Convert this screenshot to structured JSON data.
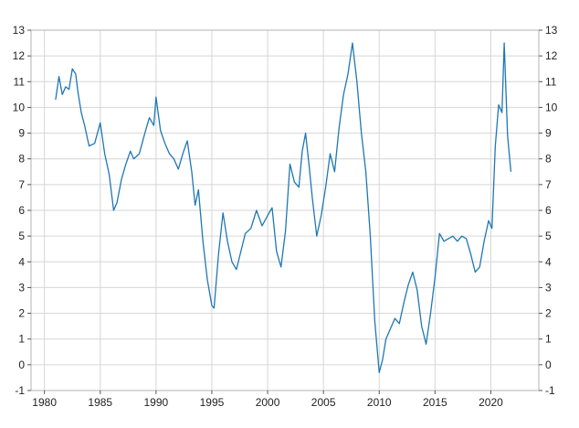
{
  "chart_data": {
    "type": "line",
    "title": "",
    "xlabel": "",
    "ylabel": "",
    "xlim": [
      1978.8,
      2024.3
    ],
    "ylim": [
      -1,
      13
    ],
    "grid": true,
    "x_ticks": [
      1980,
      1985,
      1990,
      1995,
      2000,
      2005,
      2010,
      2015,
      2020
    ],
    "x_tick_labels": [
      "1980",
      "1985",
      "1990",
      "1995",
      "2000",
      "2005",
      "2010",
      "2015",
      "2020"
    ],
    "y_ticks": [
      -1,
      0,
      1,
      2,
      3,
      4,
      5,
      6,
      7,
      8,
      9,
      10,
      11,
      12,
      13
    ],
    "y_tick_labels": [
      "-1",
      "0",
      "1",
      "2",
      "3",
      "4",
      "5",
      "6",
      "7",
      "8",
      "9",
      "10",
      "11",
      "12",
      "13"
    ],
    "series": [
      {
        "color": "#1f77b4",
        "x": [
          1981.0,
          1981.3,
          1981.6,
          1981.9,
          1982.2,
          1982.5,
          1982.8,
          1983.0,
          1983.3,
          1983.6,
          1984.0,
          1984.5,
          1985.0,
          1985.4,
          1985.8,
          1986.2,
          1986.5,
          1986.9,
          1987.3,
          1987.7,
          1988.0,
          1988.5,
          1989.0,
          1989.4,
          1989.8,
          1990.0,
          1990.4,
          1990.8,
          1991.2,
          1991.6,
          1992.0,
          1992.4,
          1992.8,
          1993.2,
          1993.5,
          1993.8,
          1994.2,
          1994.6,
          1995.0,
          1995.2,
          1995.6,
          1996.0,
          1996.4,
          1996.8,
          1997.2,
          1997.6,
          1998.0,
          1998.5,
          1999.0,
          1999.5,
          2000.0,
          2000.4,
          2000.8,
          2001.2,
          2001.6,
          2002.0,
          2002.4,
          2002.8,
          2003.1,
          2003.4,
          2003.7,
          2004.0,
          2004.4,
          2004.8,
          2005.2,
          2005.6,
          2006.0,
          2006.4,
          2006.8,
          2007.2,
          2007.6,
          2008.0,
          2008.4,
          2008.8,
          2009.2,
          2009.6,
          2010.0,
          2010.3,
          2010.6,
          2011.0,
          2011.4,
          2011.8,
          2012.2,
          2012.6,
          2013.0,
          2013.4,
          2013.8,
          2014.2,
          2014.6,
          2015.0,
          2015.4,
          2015.8,
          2016.2,
          2016.6,
          2017.0,
          2017.4,
          2017.8,
          2018.2,
          2018.6,
          2019.0,
          2019.4,
          2019.8,
          2020.1,
          2020.4,
          2020.7,
          2021.0,
          2021.2,
          2021.5,
          2021.8
        ],
        "y": [
          10.3,
          11.2,
          10.5,
          10.8,
          10.7,
          11.5,
          11.3,
          10.6,
          9.8,
          9.3,
          8.5,
          8.6,
          9.4,
          8.2,
          7.4,
          6.0,
          6.3,
          7.2,
          7.8,
          8.3,
          8.0,
          8.2,
          9.0,
          9.6,
          9.3,
          10.4,
          9.1,
          8.6,
          8.2,
          8.0,
          7.6,
          8.2,
          8.7,
          7.5,
          6.2,
          6.8,
          4.8,
          3.3,
          2.3,
          2.2,
          4.3,
          5.9,
          4.8,
          4.0,
          3.7,
          4.4,
          5.1,
          5.3,
          6.0,
          5.4,
          5.8,
          6.1,
          4.4,
          3.8,
          5.2,
          7.8,
          7.1,
          6.9,
          8.3,
          9.0,
          7.8,
          6.5,
          5.0,
          5.8,
          6.9,
          8.2,
          7.5,
          9.2,
          10.5,
          11.3,
          12.5,
          11.0,
          9.0,
          7.5,
          5.0,
          1.7,
          -0.3,
          0.2,
          1.0,
          1.4,
          1.8,
          1.6,
          2.4,
          3.1,
          3.6,
          2.9,
          1.5,
          0.8,
          2.0,
          3.4,
          5.1,
          4.8,
          4.9,
          5.0,
          4.8,
          5.0,
          4.9,
          4.3,
          3.6,
          3.8,
          4.8,
          5.6,
          5.3,
          8.5,
          10.1,
          9.8,
          12.5,
          8.9,
          7.5
        ]
      }
    ]
  }
}
